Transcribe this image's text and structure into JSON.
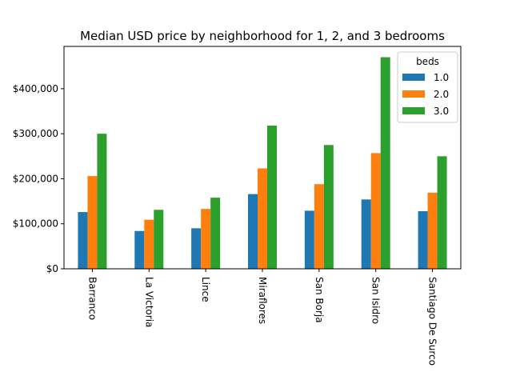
{
  "chart_data": {
    "type": "bar",
    "title": "Median USD price by neighborhood for 1, 2, and 3 bedrooms",
    "xlabel": "",
    "ylabel": "",
    "categories": [
      "Barranco",
      "La Victoria",
      "Lince",
      "Miraflores",
      "San Borja",
      "San Isidro",
      "Santiago De Surco"
    ],
    "series": [
      {
        "name": "1.0",
        "color": "#1f77b4",
        "values": [
          126000,
          84000,
          90000,
          166000,
          129000,
          154000,
          128000
        ]
      },
      {
        "name": "2.0",
        "color": "#ff7f0e",
        "values": [
          206000,
          109000,
          133000,
          223000,
          188000,
          257000,
          169000
        ]
      },
      {
        "name": "3.0",
        "color": "#2ca02c",
        "values": [
          300000,
          131000,
          158000,
          318000,
          275000,
          470000,
          250000
        ]
      }
    ],
    "ylim": [
      0,
      494000
    ],
    "yticks": [
      0,
      100000,
      200000,
      300000,
      400000
    ],
    "ytick_labels": [
      "$0",
      "$100,000",
      "$200,000",
      "$300,000",
      "$400,000"
    ],
    "legend_title": "beds",
    "legend_position": "top-right",
    "grid": false
  }
}
